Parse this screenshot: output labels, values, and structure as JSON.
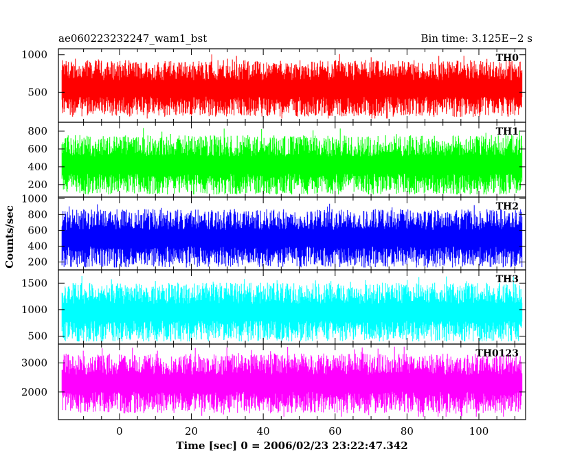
{
  "header": {
    "title": "ae060223232247_wam1_bst",
    "bin_time": "Bin time: 3.125E−2 s"
  },
  "chart_data": {
    "type": "line",
    "xlabel": "Time [sec] 0 = 2006/02/23 23:22:47.342",
    "ylabel": "Counts/sec",
    "xlim": [
      -17,
      113
    ],
    "x_ticks": [
      0,
      20,
      40,
      60,
      80,
      100
    ],
    "x_data_range": [
      -16,
      112
    ],
    "grid": false,
    "panels": [
      {
        "name": "TH0",
        "color": "#ff0000",
        "ylim": [
          100,
          1080
        ],
        "y_ticks": [
          500,
          1000
        ],
        "y_tick_labels": [
          "500",
          "1000"
        ],
        "data_range": [
          150,
          1050
        ],
        "level": 550
      },
      {
        "name": "TH1",
        "color": "#00ff00",
        "ylim": [
          60,
          900
        ],
        "y_ticks": [
          200,
          400,
          600,
          800
        ],
        "y_tick_labels": [
          "200",
          "400",
          "600",
          "800"
        ],
        "data_range": [
          90,
          890
        ],
        "level": 420
      },
      {
        "name": "TH2",
        "color": "#0000ff",
        "ylim": [
          100,
          1020
        ],
        "y_ticks": [
          200,
          400,
          600,
          800,
          1000
        ],
        "y_tick_labels": [
          "200",
          "400",
          "600",
          "800",
          "1000"
        ],
        "data_range": [
          130,
          1010
        ],
        "level": 500
      },
      {
        "name": "TH3",
        "color": "#00ffff",
        "ylim": [
          350,
          1750
        ],
        "y_ticks": [
          500,
          1000,
          1500
        ],
        "y_tick_labels": [
          "500",
          "1000",
          "1500"
        ],
        "data_range": [
          400,
          1730
        ],
        "level": 950
      },
      {
        "name": "TH0123",
        "color": "#ff00ff",
        "ylim": [
          1050,
          3650
        ],
        "y_ticks": [
          2000,
          3000
        ],
        "y_tick_labels": [
          "2000",
          "3000"
        ],
        "data_range": [
          1150,
          3600
        ],
        "level": 2300
      }
    ]
  }
}
